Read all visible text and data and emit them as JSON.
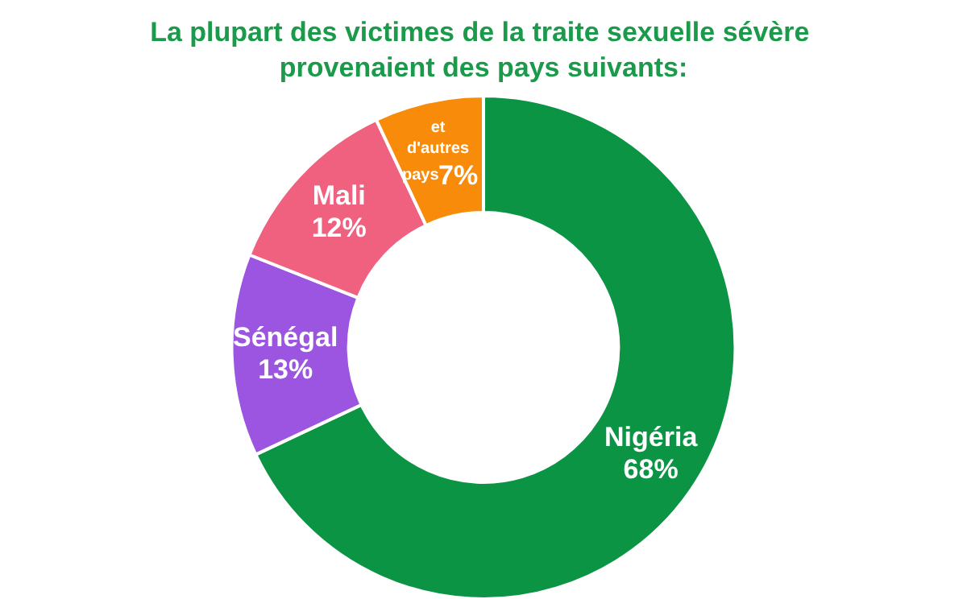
{
  "chart_data": {
    "type": "donut",
    "title": "La plupart des victimes de la traite sexuelle sévère provenaient des pays suivants:",
    "categories": [
      "Nigéria",
      "Sénégal",
      "Mali",
      "et d'autres pays"
    ],
    "values": [
      68,
      13,
      12,
      7
    ],
    "colors": [
      "#0a9444",
      "#9b55e0",
      "#f0607f",
      "#f98b0a"
    ],
    "value_labels": [
      "68%",
      "13%",
      "12%",
      "7%"
    ],
    "legend": false
  }
}
